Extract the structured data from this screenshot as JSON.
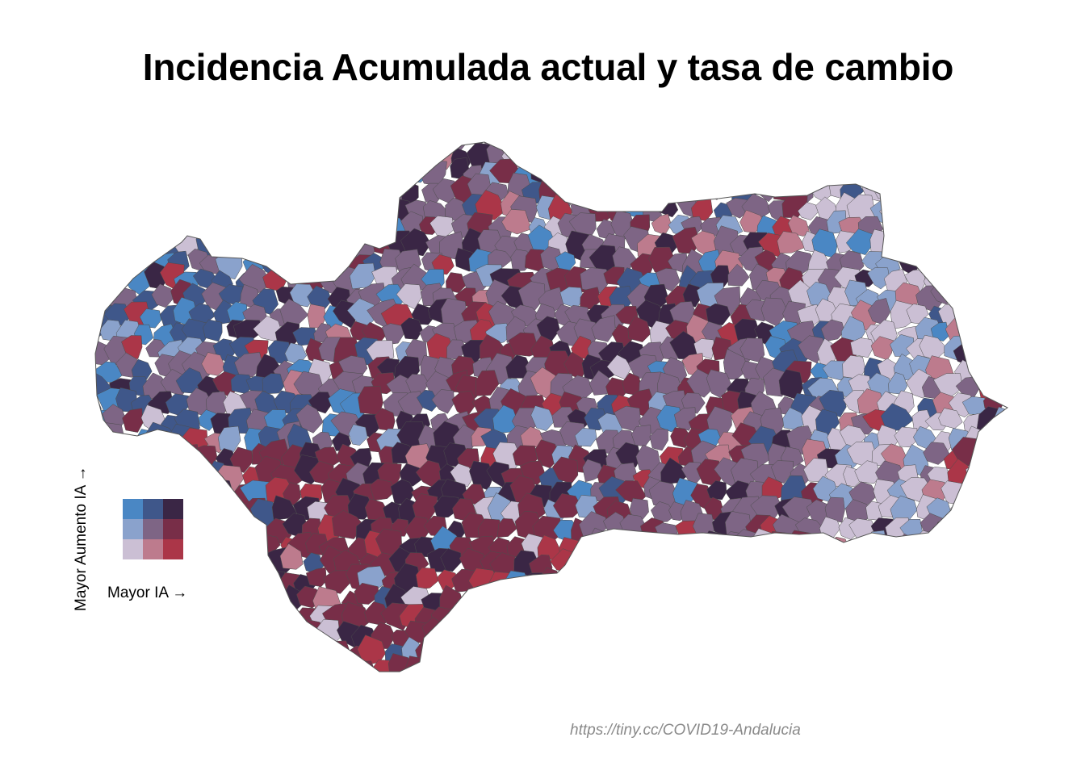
{
  "title": "Incidencia Acumulada actual y tasa de cambio",
  "legend": {
    "x_label": "Mayor IA →",
    "y_label": "Mayor Aumento IA →",
    "palette": {
      "rows_top_to_bottom": [
        [
          "#4a87c4",
          "#3f578a",
          "#3a2645"
        ],
        [
          "#8aa2cc",
          "#7e6585",
          "#782e48"
        ],
        [
          "#cbbfd4",
          "#bd7b8d",
          "#ab3648"
        ]
      ]
    }
  },
  "caption": "https://tiny.cc/COVID19-Andalucia",
  "map": {
    "region": "Andalucía",
    "border_color": "#5a5a5a"
  }
}
